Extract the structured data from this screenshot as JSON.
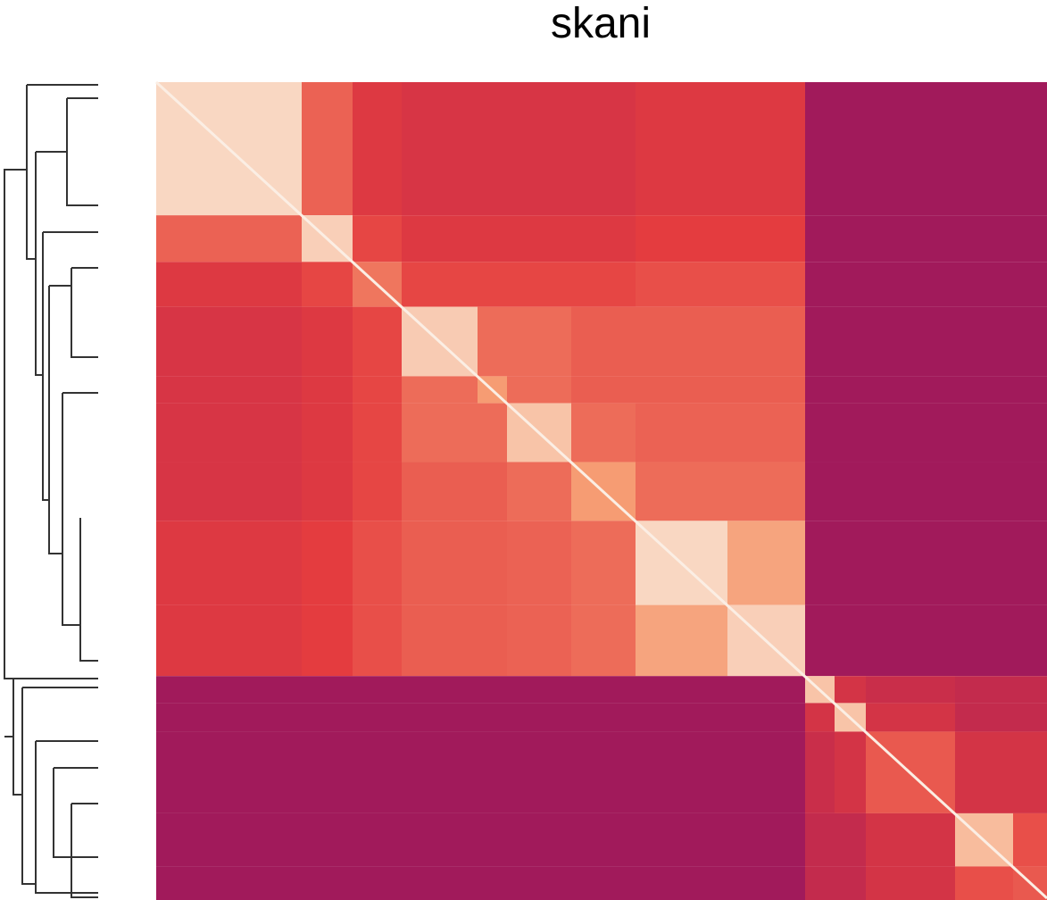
{
  "chart_data": {
    "type": "heatmap",
    "title": "skani",
    "colormap": "rocket",
    "z": [
      [
        0.95,
        0.68,
        0.58,
        0.56,
        0.56,
        0.56,
        0.56,
        0.58,
        0.58,
        0.4,
        0.4,
        0.4,
        0.4,
        0.4
      ],
      [
        0.68,
        0.93,
        0.62,
        0.58,
        0.58,
        0.58,
        0.58,
        0.6,
        0.6,
        0.4,
        0.4,
        0.4,
        0.4,
        0.4
      ],
      [
        0.58,
        0.62,
        0.72,
        0.62,
        0.62,
        0.62,
        0.62,
        0.64,
        0.64,
        0.4,
        0.4,
        0.4,
        0.4,
        0.4
      ],
      [
        0.56,
        0.58,
        0.62,
        0.92,
        0.7,
        0.7,
        0.67,
        0.67,
        0.67,
        0.4,
        0.4,
        0.4,
        0.4,
        0.4
      ],
      [
        0.56,
        0.58,
        0.62,
        0.7,
        0.8,
        0.7,
        0.67,
        0.67,
        0.67,
        0.4,
        0.4,
        0.4,
        0.4,
        0.4
      ],
      [
        0.56,
        0.58,
        0.62,
        0.7,
        0.7,
        0.9,
        0.7,
        0.68,
        0.68,
        0.4,
        0.4,
        0.4,
        0.4,
        0.4
      ],
      [
        0.56,
        0.58,
        0.62,
        0.67,
        0.67,
        0.7,
        0.8,
        0.7,
        0.7,
        0.4,
        0.4,
        0.4,
        0.4,
        0.4
      ],
      [
        0.58,
        0.6,
        0.64,
        0.67,
        0.67,
        0.68,
        0.7,
        0.95,
        0.82,
        0.4,
        0.4,
        0.4,
        0.4,
        0.4
      ],
      [
        0.58,
        0.6,
        0.64,
        0.67,
        0.67,
        0.68,
        0.7,
        0.82,
        0.93,
        0.4,
        0.4,
        0.4,
        0.4,
        0.4
      ],
      [
        0.4,
        0.4,
        0.4,
        0.4,
        0.4,
        0.4,
        0.4,
        0.4,
        0.4,
        0.9,
        0.55,
        0.52,
        0.5,
        0.5
      ],
      [
        0.4,
        0.4,
        0.4,
        0.4,
        0.4,
        0.4,
        0.4,
        0.4,
        0.4,
        0.55,
        0.9,
        0.55,
        0.5,
        0.5
      ],
      [
        0.4,
        0.4,
        0.4,
        0.4,
        0.4,
        0.4,
        0.4,
        0.4,
        0.4,
        0.52,
        0.55,
        0.66,
        0.55,
        0.55
      ],
      [
        0.4,
        0.4,
        0.4,
        0.4,
        0.4,
        0.4,
        0.4,
        0.4,
        0.4,
        0.5,
        0.5,
        0.55,
        0.88,
        0.64
      ],
      [
        0.4,
        0.4,
        0.4,
        0.4,
        0.4,
        0.4,
        0.4,
        0.4,
        0.4,
        0.5,
        0.5,
        0.55,
        0.64,
        0.66
      ]
    ]
  }
}
